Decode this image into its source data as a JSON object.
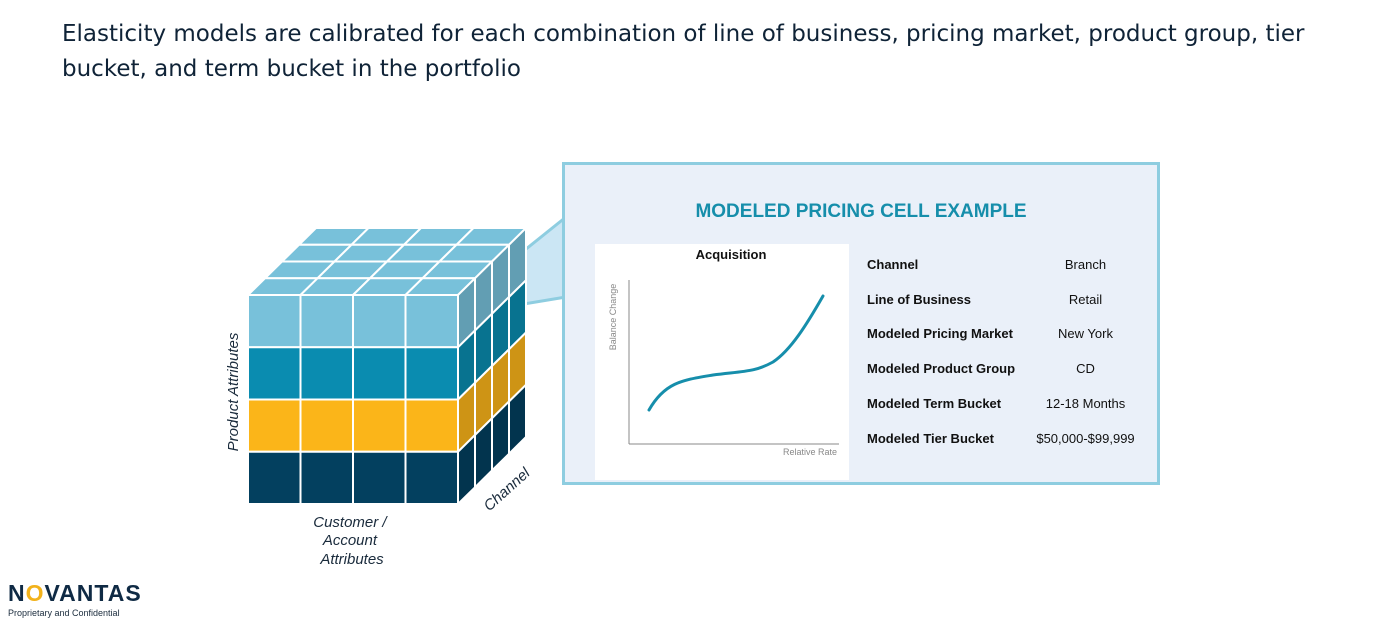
{
  "headline": "Elasticity models are calibrated for each combination of line of business, pricing market, product group, tier bucket, and term bucket in the portfolio",
  "cube": {
    "vertical_axis_label": "Product Attributes",
    "horizontal_axis_label": [
      "Customer /",
      "Account",
      "Attributes"
    ],
    "depth_axis_label": "Channel",
    "layer_colors": [
      "#78c1da",
      "#0a8cb0",
      "#fbb519",
      "#03405f"
    ]
  },
  "panel": {
    "title": "MODELED PRICING CELL EXAMPLE",
    "chart": {
      "title": "Acquisition",
      "ylabel": "Balance Change",
      "xlabel": "Relative Rate",
      "line_color": "#168eab"
    },
    "attributes": [
      {
        "label": "Channel",
        "value": "Branch"
      },
      {
        "label": "Line of Business",
        "value": "Retail"
      },
      {
        "label": "Modeled Pricing Market",
        "value": "New York"
      },
      {
        "label": "Modeled Product Group",
        "value": "CD"
      },
      {
        "label": "Modeled Term Bucket",
        "value": "12-18 Months"
      },
      {
        "label": "Modeled Tier Bucket",
        "value": "$50,000-$99,999"
      }
    ]
  },
  "footer": {
    "logo": {
      "pre": "N",
      "ring": "O",
      "post": "VANTAS"
    },
    "confidential": "Proprietary and Confidential"
  }
}
